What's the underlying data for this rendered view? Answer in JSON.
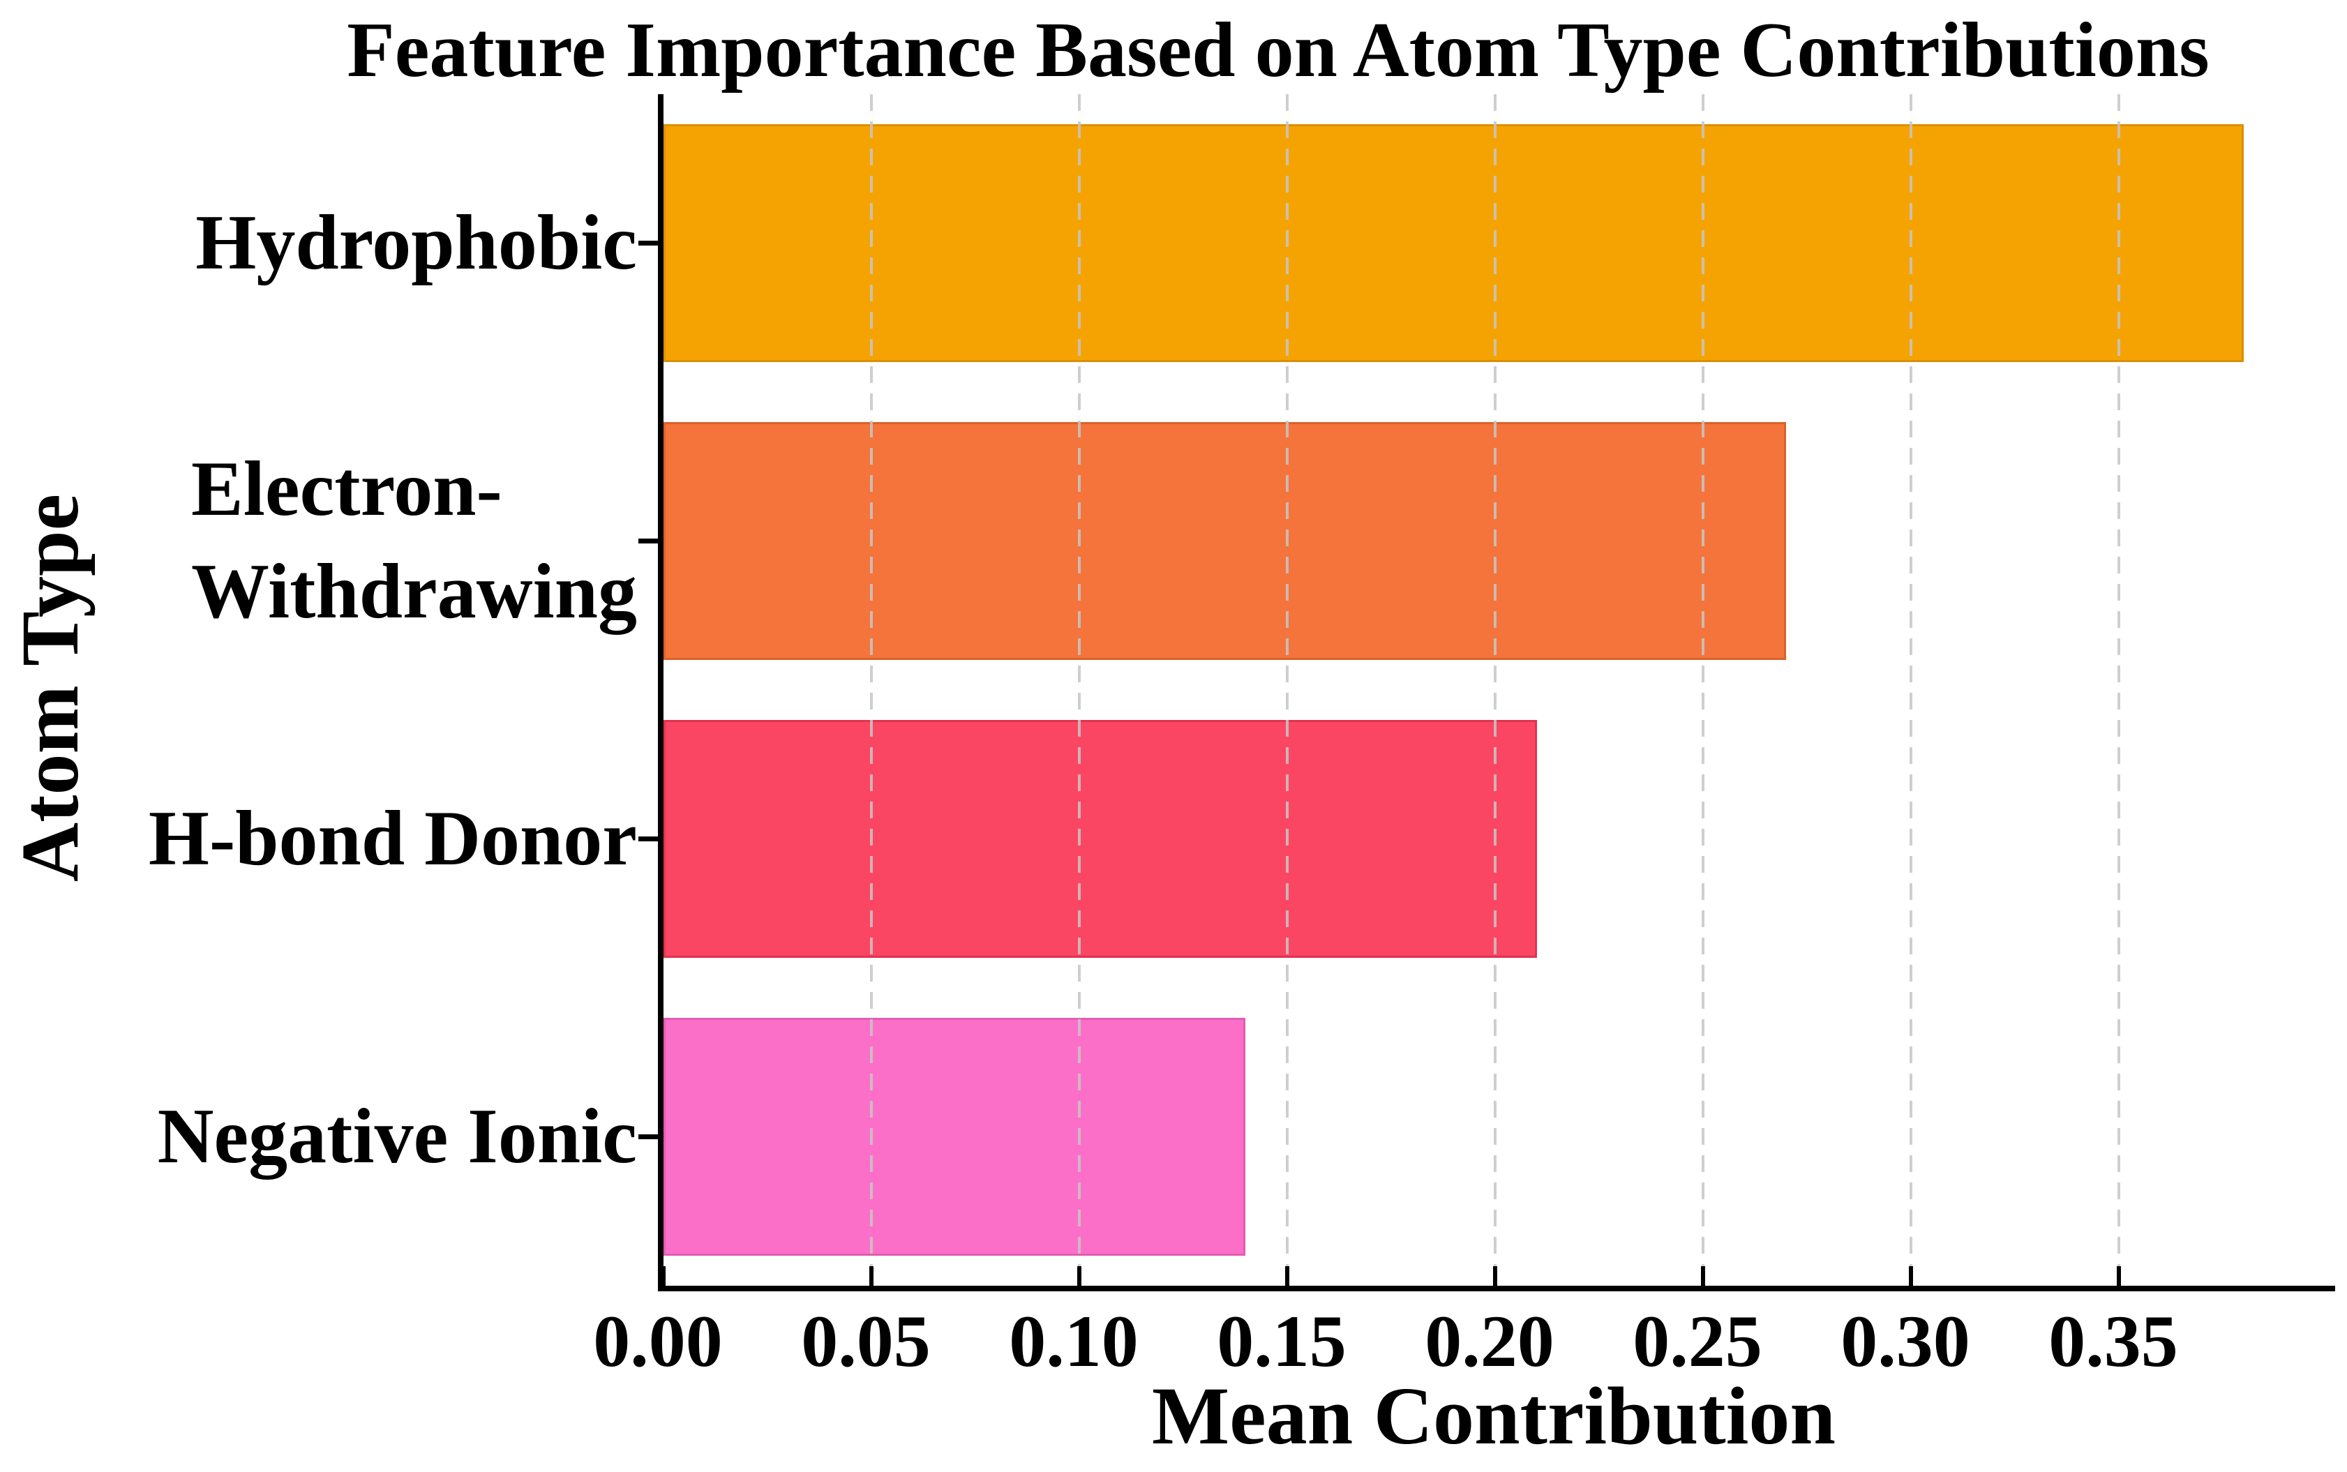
{
  "chart_data": {
    "type": "bar",
    "orientation": "horizontal",
    "title": "Feature Importance Based on Atom Type Contributions",
    "xlabel": "Mean Contribution",
    "ylabel": "Atom Type",
    "categories": [
      "Hydrophobic",
      "Electron-\nWithdrawing",
      "H-bond Donor",
      "Negative Ionic"
    ],
    "values": [
      0.38,
      0.27,
      0.21,
      0.14
    ],
    "bar_colors": [
      "#F5A303",
      "#F4743B",
      "#FB4663",
      "#FC6FC8"
    ],
    "bar_edge_colors": [
      "#DB9002",
      "#DC6228",
      "#E13350",
      "#E35BB2"
    ],
    "x_ticks": [
      0.0,
      0.05,
      0.1,
      0.15,
      0.2,
      0.25,
      0.3,
      0.35
    ],
    "x_tick_labels": [
      "0.00",
      "0.05",
      "0.10",
      "0.15",
      "0.20",
      "0.25",
      "0.30",
      "0.35"
    ],
    "xlim": [
      0,
      0.4
    ],
    "ylim_categories_top_to_bottom": true,
    "grid": "vertical-dashed",
    "grid_color": "#c6c6c6",
    "axis_color": "#000000",
    "text_color": "#000000",
    "background": "#ffffff",
    "legend": null
  }
}
